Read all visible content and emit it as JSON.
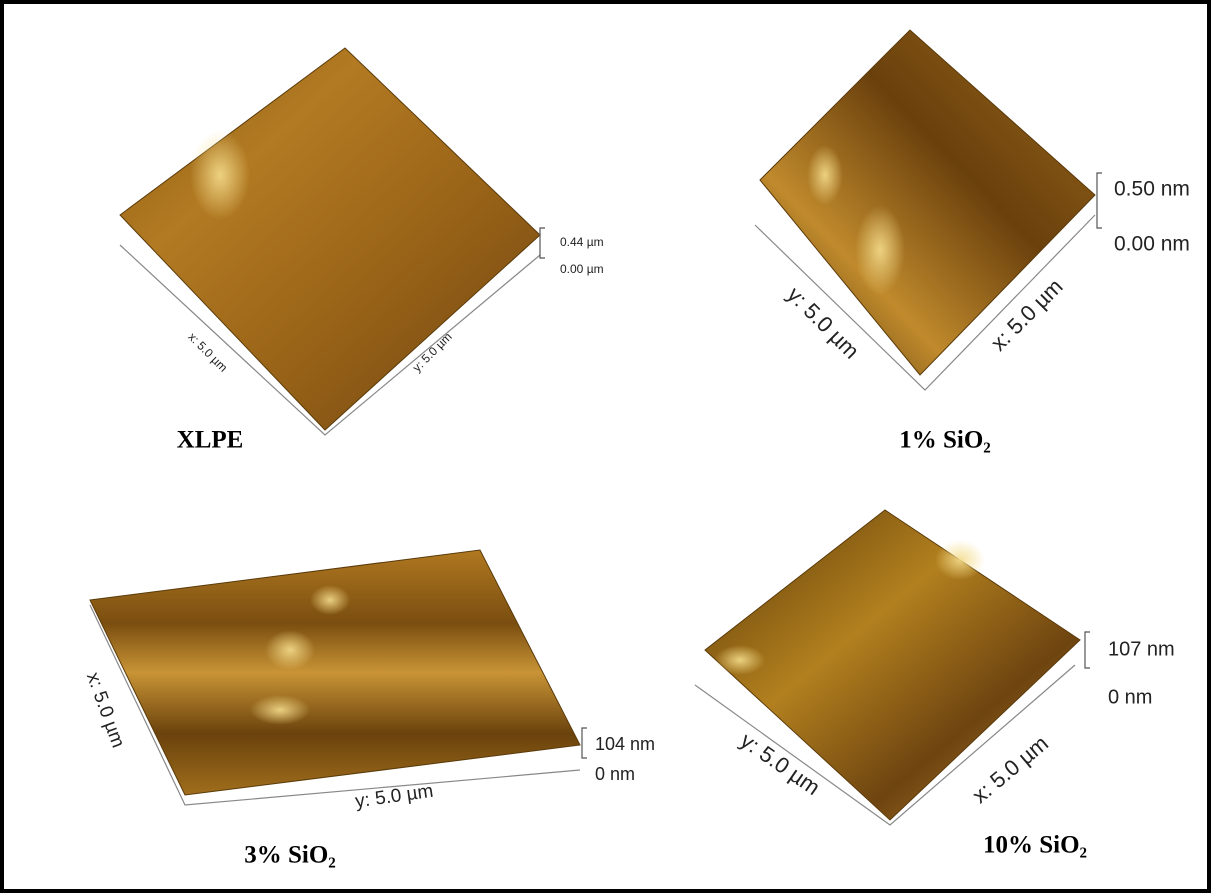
{
  "panels": [
    {
      "label": "XLPE",
      "x_axis": "x: 5.0 µm",
      "y_axis": "y: 5.0 µm",
      "z_max": "0.44 µm",
      "z_min": "0.00 µm"
    },
    {
      "label": "1% SiO₂",
      "x_axis": "x: 5.0 µm",
      "y_axis": "y: 5.0 µm",
      "z_max": "0.50 nm",
      "z_min": "0.00 nm"
    },
    {
      "label": "3% SiO₂",
      "x_axis": "x: 5.0 µm",
      "y_axis": "y: 5.0 µm",
      "z_max": "104 nm",
      "z_min": "0 nm"
    },
    {
      "label": "10% SiO₂",
      "x_axis": "x: 5.0 µm",
      "y_axis": "y: 5.0 µm",
      "z_max": "107 nm",
      "z_min": "0 nm"
    }
  ]
}
